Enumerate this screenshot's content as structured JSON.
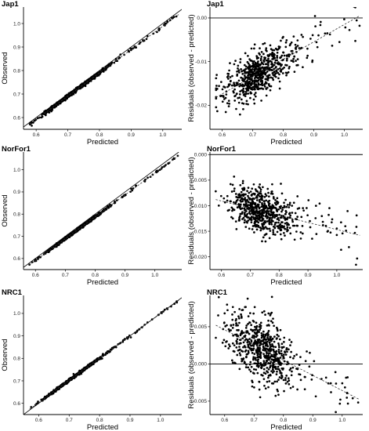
{
  "chart_data": [
    {
      "type": "scatter",
      "title": "Jap1",
      "xlabel": "Predicted",
      "ylabel": "Observed",
      "xlim": [
        0.56,
        1.06
      ],
      "ylim": [
        0.55,
        1.07
      ],
      "xticks": [
        "0.6",
        "0.7",
        "0.8",
        "0.9",
        "1.0"
      ],
      "xtick_values": [
        0.6,
        0.7,
        0.8,
        0.9,
        1.0
      ],
      "yticks": [
        "0.6",
        "0.7",
        "0.8",
        "0.9",
        "1.0"
      ],
      "ytick_values": [
        0.6,
        0.7,
        0.8,
        0.9,
        1.0
      ],
      "reference_line": {
        "type": "identity",
        "style": "solid"
      },
      "fit_line": {
        "x": [
          0.58,
          1.05
        ],
        "y": [
          0.572,
          1.038
        ],
        "style": "dashed"
      },
      "points": {
        "n": 650,
        "x_center": 0.72,
        "x_spread": 0.055,
        "x_min": 0.58,
        "x_max": 1.05,
        "slope": 0.99,
        "intercept": -0.002,
        "noise": 0.004
      }
    },
    {
      "type": "scatter",
      "title": "Jap1",
      "xlabel": "Predicted",
      "ylabel": "Residuals (observed - predicted)",
      "xlim": [
        0.56,
        1.06
      ],
      "ylim": [
        -0.0255,
        0.0025
      ],
      "xticks": [
        "0.6",
        "0.7",
        "0.8",
        "0.9",
        "1.0"
      ],
      "xtick_values": [
        0.6,
        0.7,
        0.8,
        0.9,
        1.0
      ],
      "yticks": [
        "-0.02",
        "-0.01",
        "0.00"
      ],
      "ytick_values": [
        -0.02,
        -0.01,
        0.0
      ],
      "reference_line": {
        "type": "horizontal",
        "y": 0,
        "style": "solid"
      },
      "fit_line": {
        "x": [
          0.58,
          1.05
        ],
        "y": [
          -0.0182,
          0.0005
        ],
        "style": "dashed"
      },
      "points": {
        "n": 650,
        "x_center": 0.72,
        "x_spread": 0.055,
        "x_min": 0.58,
        "x_max": 1.05,
        "slope": 0.0398,
        "intercept": -0.0413,
        "noise": 0.0025
      }
    },
    {
      "type": "scatter",
      "title": "NorFor1",
      "xlabel": "Predicted",
      "ylabel": "Observed",
      "xlim": [
        0.56,
        1.09
      ],
      "ylim": [
        0.55,
        1.08
      ],
      "xticks": [
        "0.6",
        "0.7",
        "0.8",
        "0.9",
        "1.0"
      ],
      "xtick_values": [
        0.6,
        0.7,
        0.8,
        0.9,
        1.0
      ],
      "yticks": [
        "0.6",
        "0.7",
        "0.8",
        "0.9",
        "1.0"
      ],
      "ytick_values": [
        0.6,
        0.7,
        0.8,
        0.9,
        1.0
      ],
      "reference_line": {
        "type": "identity",
        "style": "solid"
      },
      "fit_line": {
        "x": [
          0.58,
          1.08
        ],
        "y": [
          0.571,
          1.064
        ],
        "style": "dashed"
      },
      "points": {
        "n": 650,
        "x_center": 0.74,
        "x_spread": 0.055,
        "x_min": 0.58,
        "x_max": 1.08,
        "slope": 0.986,
        "intercept": -0.001,
        "noise": 0.003
      }
    },
    {
      "type": "scatter",
      "title": "NorFor1",
      "xlabel": "Predicted",
      "ylabel": "Residuals (observed - predicted)",
      "xlim": [
        0.56,
        1.09
      ],
      "ylim": [
        -0.0225,
        0.0005
      ],
      "xticks": [
        "0.6",
        "0.7",
        "0.8",
        "0.9",
        "1.0"
      ],
      "xtick_values": [
        0.6,
        0.7,
        0.8,
        0.9,
        1.0
      ],
      "yticks": [
        "-0.020",
        "-0.015",
        "-0.010",
        "-0.005",
        "0.000"
      ],
      "ytick_values": [
        -0.02,
        -0.015,
        -0.01,
        -0.005,
        0.0
      ],
      "reference_line": {
        "type": "horizontal",
        "y": 0,
        "style": "solid"
      },
      "fit_line": {
        "x": [
          0.58,
          1.08
        ],
        "y": [
          -0.0088,
          -0.0158
        ],
        "style": "dashed"
      },
      "points": {
        "n": 650,
        "x_center": 0.74,
        "x_spread": 0.055,
        "x_min": 0.58,
        "x_max": 1.08,
        "slope": -0.014,
        "intercept": -0.00068,
        "noise": 0.0022
      }
    },
    {
      "type": "scatter",
      "title": "NRC1",
      "xlabel": "Predicted",
      "ylabel": "Observed",
      "xlim": [
        0.55,
        1.07
      ],
      "ylim": [
        0.55,
        1.08
      ],
      "xticks": [
        "0.6",
        "0.7",
        "0.8",
        "0.9",
        "1.0"
      ],
      "xtick_values": [
        0.6,
        0.7,
        0.8,
        0.9,
        1.0
      ],
      "yticks": [
        "0.6",
        "0.7",
        "0.8",
        "0.9",
        "1.0"
      ],
      "ytick_values": [
        0.6,
        0.7,
        0.8,
        0.9,
        1.0
      ],
      "reference_line": {
        "type": "identity",
        "style": "solid"
      },
      "fit_line": {
        "x": [
          0.57,
          1.06
        ],
        "y": [
          0.574,
          1.058
        ],
        "style": "dashed"
      },
      "points": {
        "n": 650,
        "x_center": 0.72,
        "x_spread": 0.055,
        "x_min": 0.57,
        "x_max": 1.06,
        "slope": 0.988,
        "intercept": 0.0108,
        "noise": 0.003
      }
    },
    {
      "type": "scatter",
      "title": "NRC1",
      "xlabel": "Predicted",
      "ylabel": "Residuals (observed - predicted)",
      "xlim": [
        0.55,
        1.07
      ],
      "ylim": [
        -0.0068,
        0.0092
      ],
      "xticks": [
        "0.6",
        "0.7",
        "0.8",
        "0.9",
        "1.0"
      ],
      "xtick_values": [
        0.6,
        0.7,
        0.8,
        0.9,
        1.0
      ],
      "yticks": [
        "-0.005",
        "0.000",
        "0.005"
      ],
      "ytick_values": [
        -0.005,
        0.0,
        0.005
      ],
      "reference_line": {
        "type": "horizontal",
        "y": 0,
        "style": "solid"
      },
      "fit_line": {
        "x": [
          0.57,
          1.06
        ],
        "y": [
          0.0052,
          -0.0048
        ],
        "style": "dashed"
      },
      "points": {
        "n": 650,
        "x_center": 0.72,
        "x_spread": 0.055,
        "x_min": 0.57,
        "x_max": 1.06,
        "slope": -0.0204,
        "intercept": 0.0168,
        "noise": 0.0021
      }
    }
  ]
}
